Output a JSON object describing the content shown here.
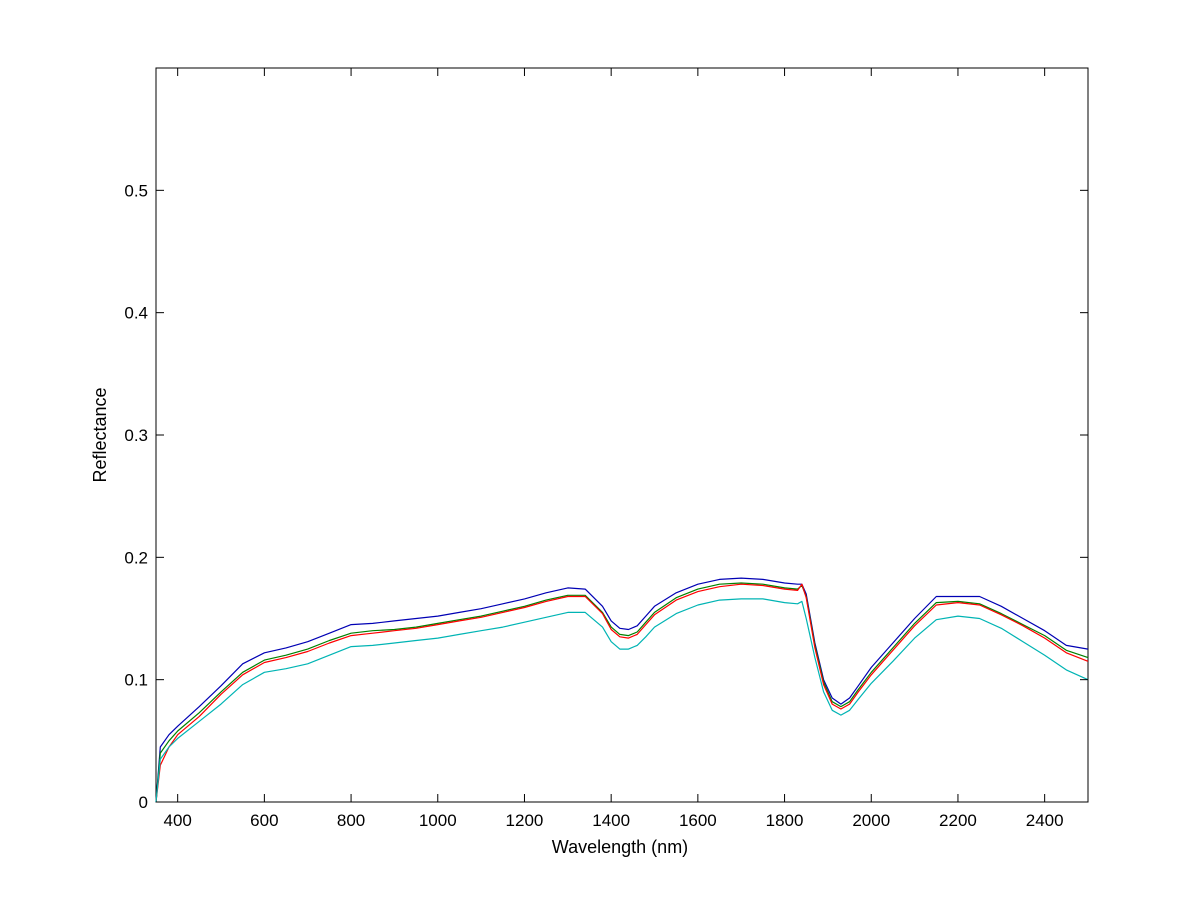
{
  "chart_data": {
    "type": "line",
    "title": "",
    "xlabel": "Wavelength (nm)",
    "ylabel": "Reflectance",
    "xlim": [
      350,
      2500
    ],
    "ylim": [
      0,
      0.6
    ],
    "x_ticks": [
      400,
      600,
      800,
      1000,
      1200,
      1400,
      1600,
      1800,
      2000,
      2200,
      2400
    ],
    "y_ticks": [
      0,
      0.1,
      0.2,
      0.3,
      0.4,
      0.5
    ],
    "x_tick_labels": [
      "400",
      "600",
      "800",
      "1000",
      "1200",
      "1400",
      "1600",
      "1800",
      "2000",
      "2200",
      "2400"
    ],
    "y_tick_labels": [
      "0",
      "0.1",
      "0.2",
      "0.3",
      "0.4",
      "0.5"
    ],
    "grid": false,
    "legend": "none",
    "x": [
      350,
      360,
      380,
      400,
      450,
      500,
      550,
      600,
      650,
      700,
      750,
      800,
      850,
      900,
      950,
      1000,
      1050,
      1100,
      1150,
      1200,
      1250,
      1300,
      1340,
      1380,
      1400,
      1420,
      1440,
      1460,
      1480,
      1500,
      1550,
      1600,
      1650,
      1700,
      1750,
      1800,
      1830,
      1840,
      1850,
      1870,
      1890,
      1910,
      1930,
      1950,
      1970,
      2000,
      2050,
      2100,
      2150,
      2200,
      2250,
      2300,
      2350,
      2400,
      2450,
      2500
    ],
    "series": [
      {
        "color": "#0000b4",
        "values": [
          0.0,
          0.045,
          0.055,
          0.062,
          0.078,
          0.095,
          0.113,
          0.122,
          0.126,
          0.131,
          0.138,
          0.145,
          0.146,
          0.148,
          0.15,
          0.152,
          0.155,
          0.158,
          0.162,
          0.166,
          0.171,
          0.175,
          0.174,
          0.16,
          0.148,
          0.142,
          0.141,
          0.144,
          0.152,
          0.16,
          0.171,
          0.178,
          0.182,
          0.183,
          0.182,
          0.179,
          0.178,
          0.178,
          0.17,
          0.13,
          0.1,
          0.085,
          0.08,
          0.085,
          0.095,
          0.11,
          0.13,
          0.15,
          0.168,
          0.168,
          0.168,
          0.16,
          0.15,
          0.14,
          0.128,
          0.125
        ]
      },
      {
        "color": "#008000",
        "values": [
          0.0,
          0.04,
          0.05,
          0.058,
          0.073,
          0.09,
          0.106,
          0.116,
          0.12,
          0.125,
          0.132,
          0.138,
          0.14,
          0.141,
          0.143,
          0.146,
          0.149,
          0.152,
          0.156,
          0.16,
          0.165,
          0.169,
          0.169,
          0.155,
          0.143,
          0.137,
          0.136,
          0.139,
          0.147,
          0.155,
          0.167,
          0.174,
          0.178,
          0.179,
          0.178,
          0.175,
          0.174,
          0.177,
          0.168,
          0.128,
          0.098,
          0.082,
          0.078,
          0.082,
          0.092,
          0.106,
          0.126,
          0.146,
          0.163,
          0.164,
          0.162,
          0.154,
          0.145,
          0.136,
          0.124,
          0.118
        ]
      },
      {
        "color": "#ff0000",
        "values": [
          0.0,
          0.03,
          0.045,
          0.055,
          0.07,
          0.088,
          0.104,
          0.114,
          0.118,
          0.123,
          0.13,
          0.136,
          0.138,
          0.14,
          0.142,
          0.145,
          0.148,
          0.151,
          0.155,
          0.159,
          0.164,
          0.168,
          0.168,
          0.154,
          0.141,
          0.135,
          0.134,
          0.137,
          0.145,
          0.153,
          0.165,
          0.172,
          0.176,
          0.178,
          0.177,
          0.174,
          0.173,
          0.178,
          0.167,
          0.126,
          0.096,
          0.08,
          0.076,
          0.08,
          0.09,
          0.104,
          0.124,
          0.144,
          0.161,
          0.163,
          0.161,
          0.153,
          0.144,
          0.134,
          0.122,
          0.115
        ]
      },
      {
        "color": "#00b4b4",
        "values": [
          0.0,
          0.035,
          0.045,
          0.052,
          0.066,
          0.08,
          0.096,
          0.106,
          0.109,
          0.113,
          0.12,
          0.127,
          0.128,
          0.13,
          0.132,
          0.134,
          0.137,
          0.14,
          0.143,
          0.147,
          0.151,
          0.155,
          0.155,
          0.143,
          0.131,
          0.125,
          0.125,
          0.128,
          0.135,
          0.143,
          0.154,
          0.161,
          0.165,
          0.166,
          0.166,
          0.163,
          0.162,
          0.164,
          0.15,
          0.118,
          0.09,
          0.075,
          0.071,
          0.075,
          0.084,
          0.097,
          0.115,
          0.134,
          0.149,
          0.152,
          0.15,
          0.142,
          0.131,
          0.12,
          0.108,
          0.1
        ]
      }
    ]
  }
}
